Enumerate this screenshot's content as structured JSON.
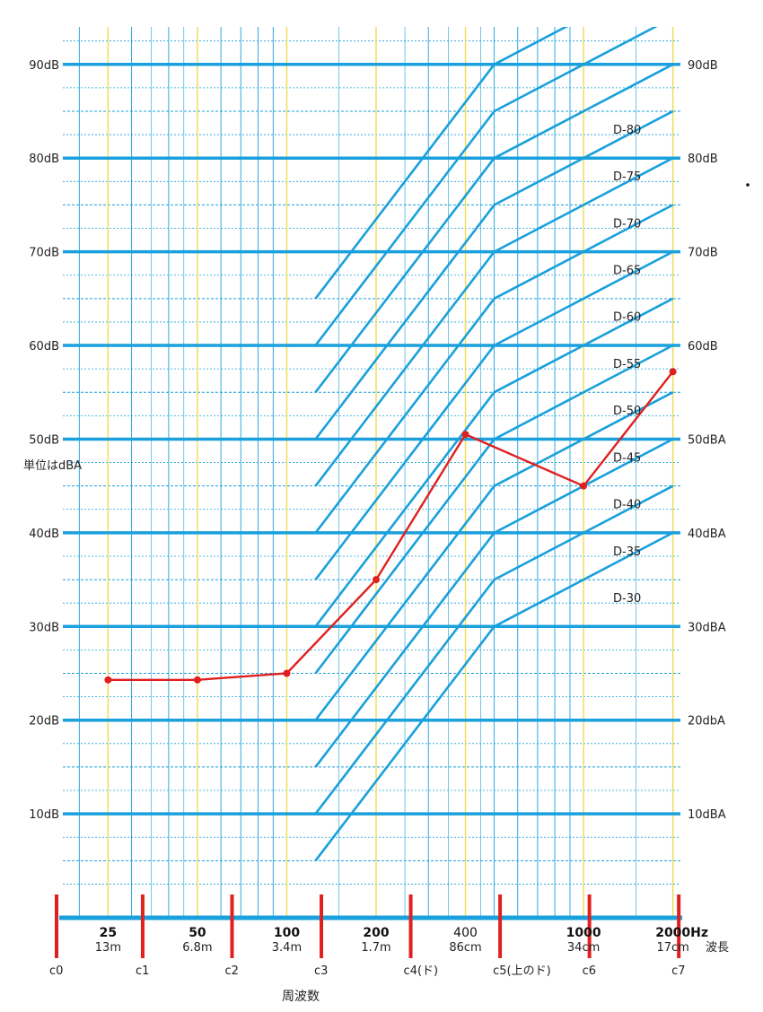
{
  "chart_data": {
    "type": "line",
    "y_axis_left_labels": [
      "90dB",
      "80dB",
      "70dB",
      "60dB",
      "50dB",
      "40dB",
      "30dB",
      "20dB",
      "10dB"
    ],
    "y_axis_right_labels": [
      "90dB",
      "80dB",
      "70dB",
      "60dB",
      "50dBA",
      "40dBA",
      "30dBA",
      "20dbA",
      "10dBA"
    ],
    "y_ticks": [
      90,
      80,
      70,
      60,
      50,
      40,
      30,
      20,
      10
    ],
    "ylim": [
      -1,
      94
    ],
    "x_scale": "log",
    "xlim": [
      17.6,
      2120
    ],
    "unit_label": "単位はdBA",
    "xlabel": "周波数",
    "wavelength_label": "波長",
    "frequency_ticks": [
      {
        "value": 25,
        "label": "25",
        "wavelength": "13m",
        "bold": true
      },
      {
        "value": 50,
        "label": "50",
        "wavelength": "6.8m",
        "bold": true
      },
      {
        "value": 100,
        "label": "100",
        "wavelength": "3.4m",
        "bold": true
      },
      {
        "value": 200,
        "label": "200",
        "wavelength": "1.7m",
        "bold": true
      },
      {
        "value": 400,
        "label": "400",
        "wavelength": "86cm",
        "bold": false
      },
      {
        "value": 1000,
        "label": "1000",
        "wavelength": "34cm",
        "bold": true
      },
      {
        "value": 2000,
        "label": "2000Hz",
        "wavelength": "17cm",
        "bold": true
      }
    ],
    "octave_markers": [
      {
        "value": 16.35,
        "label": "c0"
      },
      {
        "value": 32.7,
        "label": "c1"
      },
      {
        "value": 65.4,
        "label": "c2"
      },
      {
        "value": 130.8,
        "label": "c3"
      },
      {
        "value": 261.6,
        "label": "c4(ド)"
      },
      {
        "value": 523.3,
        "label": "c5(上のド)"
      },
      {
        "value": 1046.5,
        "label": "c6"
      },
      {
        "value": 2093,
        "label": "c7"
      }
    ],
    "d_curve_labels": [
      "D-80",
      "D-75",
      "D-70",
      "D-65",
      "D-60",
      "D-55",
      "D-50",
      "D-45",
      "D-40",
      "D-35",
      "D-30"
    ],
    "d_curve_levels": [
      80,
      75,
      70,
      65,
      60,
      55,
      50,
      45,
      40,
      35,
      30
    ],
    "d_curve_shape": {
      "x": [
        125,
        500,
        2000
      ],
      "offset": [
        -25,
        0,
        10
      ]
    },
    "series": [
      {
        "x": [
          25,
          50,
          100,
          200,
          400,
          1000,
          2000
        ],
        "y": [
          24.3,
          24.3,
          25,
          35,
          50.5,
          45,
          57.2
        ]
      }
    ],
    "colors": {
      "grid": "#1aa0dc",
      "octave_grid": "#f0dc50",
      "series": "#e02020",
      "marker": "#e02020"
    }
  }
}
